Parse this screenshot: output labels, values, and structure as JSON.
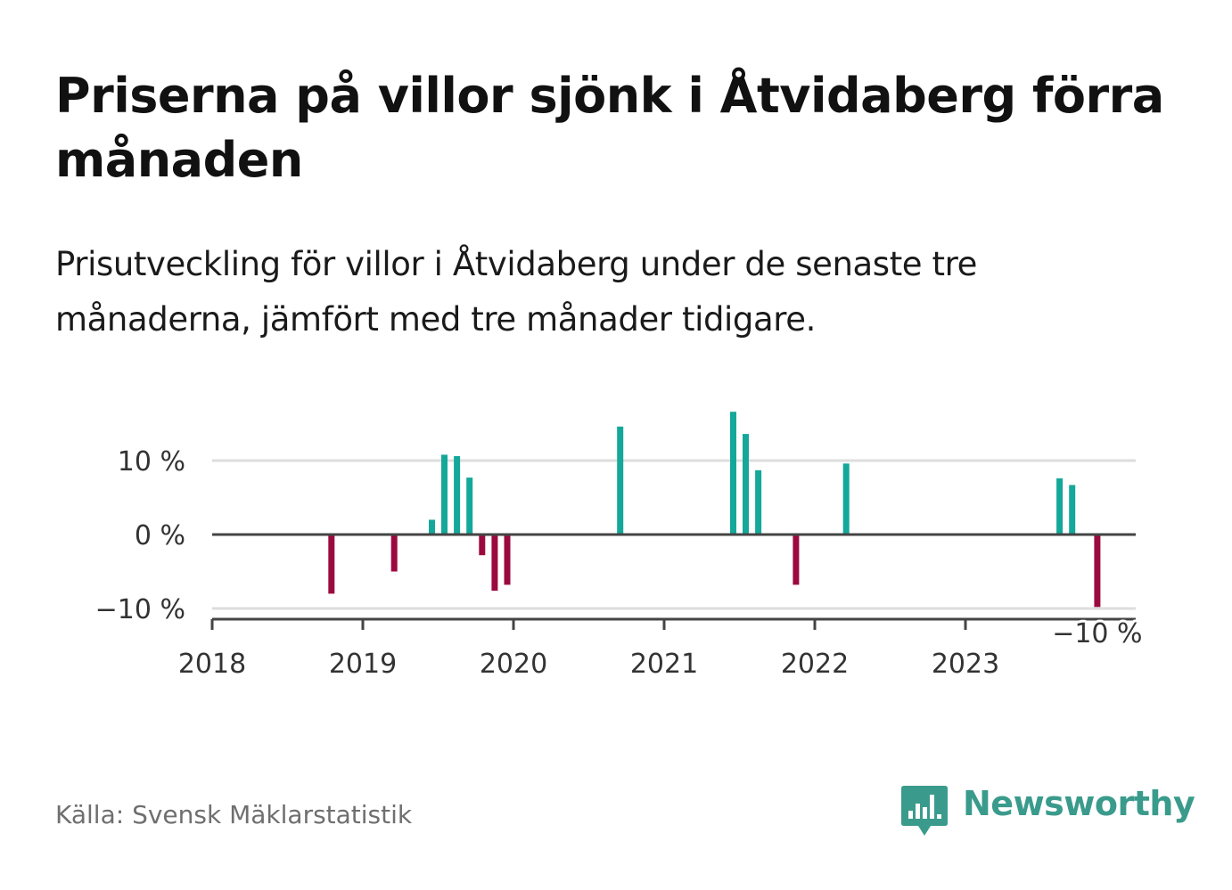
{
  "title": "Priserna på villor sjönk i Åtvidaberg förra månaden",
  "subtitle": "Prisutveckling för villor i Åtvidaberg under de senaste tre månaderna, jämfört med tre månader tidigare.",
  "source": "Källa: Svensk Mäklarstatistik",
  "brand": {
    "name": "Newsworthy",
    "color": "#3a9b8c",
    "icon": "bar-chart-speech-bubble-icon"
  },
  "colors": {
    "positive": "#14a89a",
    "negative": "#9b0a3f",
    "grid": "#dddddd",
    "zero_line": "#444444"
  },
  "chart_data": {
    "type": "bar",
    "xlabel": "",
    "ylabel": "",
    "ylim": [
      -11.5,
      17
    ],
    "x_ticks": [
      {
        "year": 2018,
        "label": "2018"
      },
      {
        "year": 2019,
        "label": "2019"
      },
      {
        "year": 2020,
        "label": "2020"
      },
      {
        "year": 2021,
        "label": "2021"
      },
      {
        "year": 2022,
        "label": "2022"
      },
      {
        "year": 2023,
        "label": "2023"
      }
    ],
    "y_ticks": [
      {
        "value": 10,
        "label": "10 %"
      },
      {
        "value": 0,
        "label": "0 %"
      },
      {
        "value": -10,
        "label": "−10 %"
      }
    ],
    "annotation": {
      "date": "2023-11",
      "value": -9.8,
      "label": "−10 %"
    },
    "series": [
      {
        "values": [
          {
            "date": "2018-10",
            "value": -8
          },
          {
            "date": "2019-03",
            "value": -5
          },
          {
            "date": "2019-06",
            "value": 2
          },
          {
            "date": "2019-07",
            "value": 10.8
          },
          {
            "date": "2019-08",
            "value": 10.6
          },
          {
            "date": "2019-09",
            "value": 7.7
          },
          {
            "date": "2019-10",
            "value": -2.8
          },
          {
            "date": "2019-11",
            "value": -7.6
          },
          {
            "date": "2019-12",
            "value": -6.8
          },
          {
            "date": "2020-09",
            "value": 14.6
          },
          {
            "date": "2021-06",
            "value": 16.6
          },
          {
            "date": "2021-07",
            "value": 13.6
          },
          {
            "date": "2021-08",
            "value": 8.7
          },
          {
            "date": "2021-11",
            "value": -6.8
          },
          {
            "date": "2022-03",
            "value": 9.6
          },
          {
            "date": "2023-08",
            "value": 7.6
          },
          {
            "date": "2023-09",
            "value": 6.7
          },
          {
            "date": "2023-11",
            "value": -9.8
          }
        ]
      }
    ]
  }
}
